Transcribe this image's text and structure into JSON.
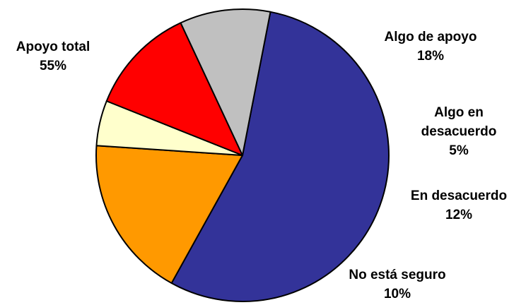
{
  "chart_data": {
    "type": "pie",
    "slices": [
      {
        "name": "Apoyo total",
        "value": 55,
        "value_label": "55%",
        "color": "#333399"
      },
      {
        "name": "Algo de apoyo",
        "value": 18,
        "value_label": "18%",
        "color": "#FF9900"
      },
      {
        "name": "Algo en desacuerdo",
        "value": 5,
        "value_label": "5%",
        "color": "#FFFFCC"
      },
      {
        "name": "En desacuerdo",
        "value": 12,
        "value_label": "12%",
        "color": "#FF0000"
      },
      {
        "name": "No está seguro",
        "value": 10,
        "value_label": "10%",
        "color": "#C0C0C0"
      }
    ],
    "legend": "none",
    "labels": "outside"
  }
}
